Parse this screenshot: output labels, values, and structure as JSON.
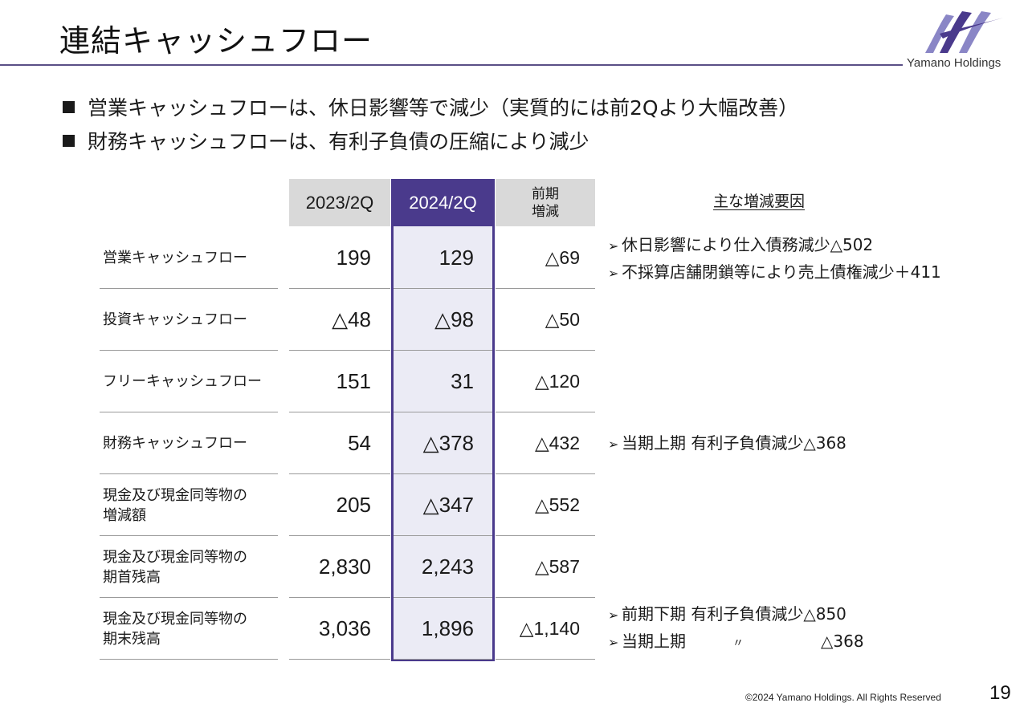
{
  "title": "連結キャッシュフロー",
  "brand": {
    "name": "Yamano Holdings",
    "color": "#4a3a8c"
  },
  "bullets": [
    "営業キャッシュフローは、休日影響等で減少（実質的には前2Qより大幅改善）",
    "財務キャッシュフローは、有利子負債の圧縮により減少"
  ],
  "table": {
    "headers": {
      "col_2023": "2023/2Q",
      "col_2024": "2024/2Q",
      "diff_line1": "前期",
      "diff_line2": "増減",
      "reason": "主な増減要因"
    },
    "rows": [
      {
        "label_line1": "営業キャッシュフロー",
        "label_line2": "",
        "v2023": "199",
        "v2024": "129",
        "diff": "△69"
      },
      {
        "label_line1": "投資キャッシュフロー",
        "label_line2": "",
        "v2023": "△48",
        "v2024": "△98",
        "diff": "△50"
      },
      {
        "label_line1": "フリーキャッシュフロー",
        "label_line2": "",
        "v2023": "151",
        "v2024": "31",
        "diff": "△120"
      },
      {
        "label_line1": "財務キャッシュフロー",
        "label_line2": "",
        "v2023": "54",
        "v2024": "△378",
        "diff": "△432"
      },
      {
        "label_line1": "現金及び現金同等物の",
        "label_line2": "増減額",
        "v2023": "205",
        "v2024": "△347",
        "diff": "△552"
      },
      {
        "label_line1": "現金及び現金同等物の",
        "label_line2": "期首残高",
        "v2023": "2,830",
        "v2024": "2,243",
        "diff": "△587"
      },
      {
        "label_line1": "現金及び現金同等物の",
        "label_line2": "期末残高",
        "v2023": "3,036",
        "v2024": "1,896",
        "diff": "△1,140"
      }
    ]
  },
  "notes": {
    "operating": [
      "休日影響により仕入債務減少△502",
      "不採算店舗閉鎖等により売上債権減少＋411"
    ],
    "financing": "当期上期  有利子負債減少△368",
    "ending": {
      "line1": "前期下期 有利子負債減少△850",
      "line2_label": "当期上期",
      "line2_ditto": "〃",
      "line2_value": "△368"
    }
  },
  "footer": {
    "copyright": "©2024 Yamano Holdings. All Rights Reserved",
    "page_number": "19"
  }
}
